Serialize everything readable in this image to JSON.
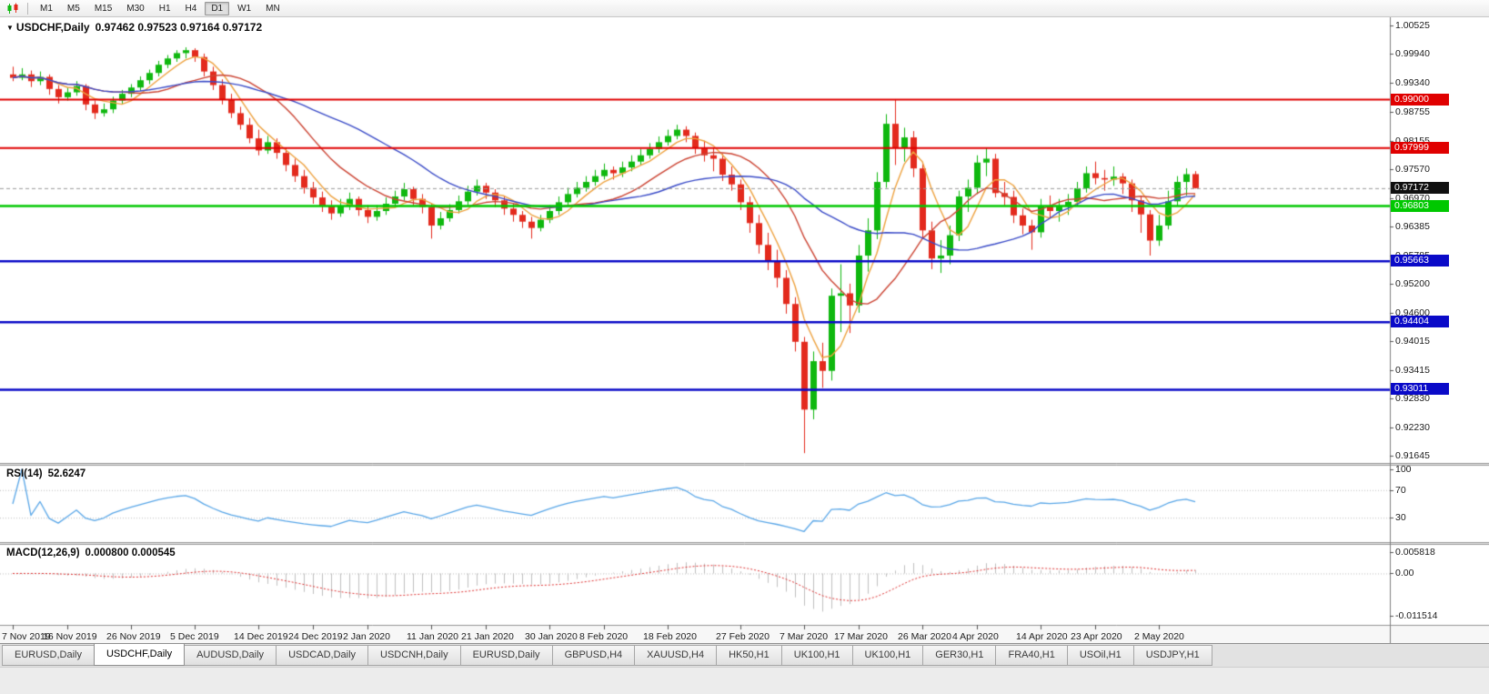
{
  "toolbar": {
    "timeframes": [
      "M1",
      "M5",
      "M15",
      "M30",
      "H1",
      "H4",
      "D1",
      "W1",
      "MN"
    ],
    "active": "D1"
  },
  "colors": {
    "up": "#0fb80f",
    "down": "#e32a1d",
    "background": "#ffffff",
    "chrome": "#f0f0f0",
    "axis_text": "#1c1c1c"
  },
  "chart_data": {
    "type": "candlestick",
    "symbol": "USDCHF",
    "timeframe": "Daily",
    "title": {
      "collapse_icon": "▼",
      "symbol_tf": "USDCHF,Daily",
      "ohlc": "0.97462 0.97523 0.97164 0.97172"
    },
    "price_axis": {
      "labels": [
        "1.00525",
        "0.99940",
        "0.99340",
        "0.98755",
        "0.98155",
        "0.97570",
        "0.96970",
        "0.96385",
        "0.95785",
        "0.95200",
        "0.94600",
        "0.94015",
        "0.93415",
        "0.92830",
        "0.92230",
        "0.91645"
      ]
    },
    "date_axis": {
      "labels": [
        "7 Nov 2019",
        "16 Nov 2019",
        "26 Nov 2019",
        "5 Dec 2019",
        "14 Dec 2019",
        "24 Dec 2019",
        "2 Jan 2020",
        "11 Jan 2020",
        "21 Jan 2020",
        "30 Jan 2020",
        "8 Feb 2020",
        "18 Feb 2020",
        "27 Feb 2020",
        "7 Mar 2020",
        "17 Mar 2020",
        "26 Mar 2020",
        "4 Apr 2020",
        "14 Apr 2020",
        "23 Apr 2020",
        "2 May 2020"
      ],
      "bar_indices": [
        0,
        6,
        13,
        20,
        27,
        33,
        39,
        46,
        52,
        59,
        65,
        72,
        80,
        87,
        93,
        100,
        106,
        113,
        119,
        126
      ]
    },
    "candles": [
      [
        0.9952,
        0.9968,
        0.9938,
        0.9945
      ],
      [
        0.9945,
        0.9965,
        0.994,
        0.9952
      ],
      [
        0.9952,
        0.996,
        0.9926,
        0.9938
      ],
      [
        0.9938,
        0.9958,
        0.993,
        0.9947
      ],
      [
        0.9947,
        0.9952,
        0.991,
        0.9922
      ],
      [
        0.9922,
        0.993,
        0.9892,
        0.9905
      ],
      [
        0.9905,
        0.9925,
        0.9898,
        0.9915
      ],
      [
        0.9915,
        0.9938,
        0.9908,
        0.9928
      ],
      [
        0.9928,
        0.9932,
        0.9878,
        0.989
      ],
      [
        0.989,
        0.9898,
        0.986,
        0.9872
      ],
      [
        0.9872,
        0.9892,
        0.9865,
        0.988
      ],
      [
        0.988,
        0.9906,
        0.9872,
        0.9898
      ],
      [
        0.9898,
        0.992,
        0.989,
        0.9912
      ],
      [
        0.9912,
        0.9932,
        0.9905,
        0.9925
      ],
      [
        0.9925,
        0.9948,
        0.9918,
        0.994
      ],
      [
        0.994,
        0.9962,
        0.9932,
        0.9955
      ],
      [
        0.9955,
        0.998,
        0.9948,
        0.9972
      ],
      [
        0.9972,
        0.9992,
        0.9965,
        0.9985
      ],
      [
        0.9985,
        1.0002,
        0.9978,
        0.9996
      ],
      [
        0.9996,
        1.0008,
        0.9985,
        1.0002
      ],
      [
        1.0002,
        1.0006,
        0.9978,
        0.9988
      ],
      [
        0.9988,
        0.9995,
        0.9948,
        0.9958
      ],
      [
        0.9958,
        0.9968,
        0.992,
        0.993
      ],
      [
        0.993,
        0.9942,
        0.989,
        0.99
      ],
      [
        0.99,
        0.9912,
        0.9862,
        0.9872
      ],
      [
        0.9872,
        0.9885,
        0.9838,
        0.9848
      ],
      [
        0.9848,
        0.9862,
        0.981,
        0.982
      ],
      [
        0.982,
        0.9838,
        0.9785,
        0.9795
      ],
      [
        0.9795,
        0.9825,
        0.9788,
        0.9812
      ],
      [
        0.9812,
        0.982,
        0.9778,
        0.979
      ],
      [
        0.979,
        0.98,
        0.9752,
        0.9765
      ],
      [
        0.9765,
        0.9778,
        0.973,
        0.9742
      ],
      [
        0.9742,
        0.9755,
        0.9706,
        0.9718
      ],
      [
        0.9718,
        0.973,
        0.9685,
        0.9698
      ],
      [
        0.9698,
        0.971,
        0.9668,
        0.968
      ],
      [
        0.968,
        0.9692,
        0.9652,
        0.9665
      ],
      [
        0.9665,
        0.9695,
        0.9658,
        0.968
      ],
      [
        0.968,
        0.9708,
        0.9672,
        0.9695
      ],
      [
        0.9695,
        0.97,
        0.966,
        0.9672
      ],
      [
        0.9672,
        0.9682,
        0.9645,
        0.9658
      ],
      [
        0.9658,
        0.9682,
        0.965,
        0.967
      ],
      [
        0.967,
        0.9698,
        0.9662,
        0.9685
      ],
      [
        0.9685,
        0.9712,
        0.9678,
        0.97
      ],
      [
        0.97,
        0.9728,
        0.9692,
        0.9715
      ],
      [
        0.9715,
        0.972,
        0.9682,
        0.9695
      ],
      [
        0.9695,
        0.9705,
        0.9665,
        0.9678
      ],
      [
        0.9678,
        0.9685,
        0.9613,
        0.964
      ],
      [
        0.964,
        0.9668,
        0.9632,
        0.9655
      ],
      [
        0.9655,
        0.9684,
        0.9648,
        0.9672
      ],
      [
        0.9672,
        0.9702,
        0.9665,
        0.969
      ],
      [
        0.969,
        0.9722,
        0.9682,
        0.971
      ],
      [
        0.971,
        0.9735,
        0.9702,
        0.9722
      ],
      [
        0.9722,
        0.9728,
        0.9695,
        0.9708
      ],
      [
        0.9708,
        0.9715,
        0.9678,
        0.9692
      ],
      [
        0.9692,
        0.97,
        0.9662,
        0.9675
      ],
      [
        0.9675,
        0.9685,
        0.9648,
        0.9662
      ],
      [
        0.9662,
        0.967,
        0.9635,
        0.9648
      ],
      [
        0.9648,
        0.9658,
        0.9613,
        0.9635
      ],
      [
        0.9635,
        0.9662,
        0.9628,
        0.9652
      ],
      [
        0.9652,
        0.9682,
        0.9645,
        0.967
      ],
      [
        0.967,
        0.97,
        0.9662,
        0.9688
      ],
      [
        0.9688,
        0.9718,
        0.968,
        0.9705
      ],
      [
        0.9705,
        0.973,
        0.9698,
        0.9718
      ],
      [
        0.9718,
        0.9742,
        0.971,
        0.973
      ],
      [
        0.973,
        0.9755,
        0.9722,
        0.9742
      ],
      [
        0.9742,
        0.9768,
        0.9735,
        0.9755
      ],
      [
        0.9755,
        0.9762,
        0.9735,
        0.9748
      ],
      [
        0.9748,
        0.9772,
        0.974,
        0.976
      ],
      [
        0.976,
        0.9785,
        0.9752,
        0.9772
      ],
      [
        0.9772,
        0.9798,
        0.9765,
        0.9785
      ],
      [
        0.9785,
        0.981,
        0.9778,
        0.9798
      ],
      [
        0.9798,
        0.9824,
        0.979,
        0.9812
      ],
      [
        0.9812,
        0.9838,
        0.9805,
        0.9825
      ],
      [
        0.9825,
        0.9848,
        0.9818,
        0.9838
      ],
      [
        0.9838,
        0.9845,
        0.9812,
        0.9825
      ],
      [
        0.9825,
        0.9832,
        0.9788,
        0.98
      ],
      [
        0.98,
        0.9815,
        0.9772,
        0.9785
      ],
      [
        0.9785,
        0.98,
        0.9752,
        0.9778
      ],
      [
        0.9778,
        0.9788,
        0.9732,
        0.9745
      ],
      [
        0.9745,
        0.9762,
        0.9712,
        0.9725
      ],
      [
        0.9725,
        0.9735,
        0.9672,
        0.9688
      ],
      [
        0.9688,
        0.97,
        0.9625,
        0.9645
      ],
      [
        0.9645,
        0.9662,
        0.9582,
        0.96
      ],
      [
        0.96,
        0.9625,
        0.9548,
        0.9568
      ],
      [
        0.9568,
        0.959,
        0.9512,
        0.9532
      ],
      [
        0.9532,
        0.9548,
        0.9458,
        0.9478
      ],
      [
        0.9478,
        0.9492,
        0.938,
        0.94
      ],
      [
        0.94,
        0.941,
        0.917,
        0.926
      ],
      [
        0.926,
        0.938,
        0.924,
        0.936
      ],
      [
        0.936,
        0.9398,
        0.9305,
        0.934
      ],
      [
        0.934,
        0.951,
        0.932,
        0.9495
      ],
      [
        0.9495,
        0.956,
        0.942,
        0.95
      ],
      [
        0.95,
        0.952,
        0.9418,
        0.9475
      ],
      [
        0.9475,
        0.96,
        0.946,
        0.9578
      ],
      [
        0.9578,
        0.9655,
        0.9545,
        0.963
      ],
      [
        0.963,
        0.975,
        0.9612,
        0.973
      ],
      [
        0.973,
        0.987,
        0.9718,
        0.985
      ],
      [
        0.985,
        0.9901,
        0.9765,
        0.98
      ],
      [
        0.98,
        0.9842,
        0.9772,
        0.9822
      ],
      [
        0.9822,
        0.9835,
        0.974,
        0.9758
      ],
      [
        0.9758,
        0.977,
        0.9615,
        0.963
      ],
      [
        0.963,
        0.9648,
        0.955,
        0.9572
      ],
      [
        0.9572,
        0.961,
        0.9542,
        0.9578
      ],
      [
        0.9578,
        0.964,
        0.956,
        0.962
      ],
      [
        0.962,
        0.9712,
        0.9608,
        0.97
      ],
      [
        0.97,
        0.9735,
        0.9668,
        0.9718
      ],
      [
        0.9718,
        0.9785,
        0.9705,
        0.977
      ],
      [
        0.977,
        0.98,
        0.9742,
        0.9778
      ],
      [
        0.9778,
        0.9788,
        0.9698,
        0.9707
      ],
      [
        0.9707,
        0.973,
        0.9682,
        0.9699
      ],
      [
        0.9699,
        0.9712,
        0.9645,
        0.9661
      ],
      [
        0.9661,
        0.9675,
        0.9622,
        0.964
      ],
      [
        0.964,
        0.9652,
        0.959,
        0.9626
      ],
      [
        0.9626,
        0.9695,
        0.9615,
        0.968
      ],
      [
        0.968,
        0.9702,
        0.9655,
        0.967
      ],
      [
        0.967,
        0.9695,
        0.9648,
        0.9679
      ],
      [
        0.9679,
        0.9705,
        0.9662,
        0.9689
      ],
      [
        0.9689,
        0.973,
        0.968,
        0.9717
      ],
      [
        0.9717,
        0.9762,
        0.9708,
        0.9748
      ],
      [
        0.9748,
        0.9772,
        0.9725,
        0.9738
      ],
      [
        0.9738,
        0.9755,
        0.9712,
        0.9735
      ],
      [
        0.9735,
        0.9762,
        0.9722,
        0.9741
      ],
      [
        0.9741,
        0.9748,
        0.9705,
        0.9727
      ],
      [
        0.9727,
        0.9735,
        0.9668,
        0.9692
      ],
      [
        0.9692,
        0.97,
        0.9625,
        0.9663
      ],
      [
        0.9663,
        0.9672,
        0.9578,
        0.9609
      ],
      [
        0.9609,
        0.9662,
        0.9598,
        0.964
      ],
      [
        0.964,
        0.9712,
        0.9632,
        0.969
      ],
      [
        0.969,
        0.9742,
        0.968,
        0.973
      ],
      [
        0.973,
        0.9758,
        0.9702,
        0.9746
      ],
      [
        0.97462,
        0.97523,
        0.97164,
        0.97172
      ]
    ],
    "moving_averages": [
      {
        "period": 5,
        "color": "#eea23f"
      },
      {
        "period": 13,
        "color": "#cc4433"
      },
      {
        "period": 26,
        "color": "#3b4cc8"
      }
    ],
    "levels": [
      {
        "value": 0.99,
        "label": "0.99000",
        "color": "#e00000",
        "width": 2
      },
      {
        "value": 0.97999,
        "label": "0.97999",
        "color": "#e00000",
        "width": 2
      },
      {
        "value": 0.96803,
        "label": "0.96803",
        "color": "#00c800",
        "width": 2.5
      },
      {
        "value": 0.95663,
        "label": "0.95663",
        "color": "#0a0ac8",
        "width": 2.5
      },
      {
        "value": 0.94404,
        "label": "0.94404",
        "color": "#0a0ac8",
        "width": 2.5
      },
      {
        "value": 0.93011,
        "label": "0.93011",
        "color": "#0a0ac8",
        "width": 2.5
      }
    ],
    "current_price": {
      "value": 0.97172,
      "label": "0.97172",
      "tag_color": "#101010",
      "line_color": "#999999"
    },
    "rsi": {
      "name": "RSI(14)",
      "value": "52.6247",
      "period": 14,
      "color": "#5aa7e8",
      "axis_labels": [
        {
          "value": 100,
          "text": "100"
        },
        {
          "value": 70,
          "text": "70"
        },
        {
          "value": 30,
          "text": "30"
        }
      ],
      "guide_levels": [
        70,
        30
      ]
    },
    "macd": {
      "name": "MACD(12,26,9)",
      "values": "0.000800 0.000545",
      "fast": 12,
      "slow": 26,
      "signal": 9,
      "hist_color": "#c0c0c0",
      "signal_color": "#e03333",
      "axis_labels": [
        {
          "value": 0.005818,
          "text": "0.005818"
        },
        {
          "value": 0,
          "text": "0.00"
        },
        {
          "value": -0.011514,
          "text": "-0.011514"
        }
      ]
    }
  },
  "tabs": {
    "items": [
      "EURUSD,Daily",
      "USDCHF,Daily",
      "AUDUSD,Daily",
      "USDCAD,Daily",
      "USDCNH,Daily",
      "EURUSD,Daily",
      "GBPUSD,H4",
      "XAUUSD,H4",
      "HK50,H1",
      "UK100,H1",
      "UK100,H1",
      "GER30,H1",
      "FRA40,H1",
      "USOil,H1",
      "USDJPY,H1"
    ],
    "active_index": 1
  }
}
